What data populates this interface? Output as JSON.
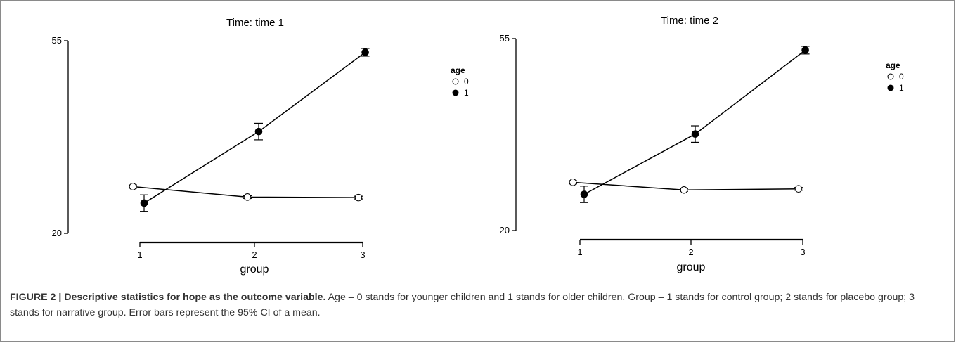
{
  "chart_data": [
    {
      "type": "line",
      "title": "Time: time 1",
      "xlabel": "group",
      "ylabel": "",
      "categories": [
        "1",
        "2",
        "3"
      ],
      "ylim": [
        20,
        55
      ],
      "y_ticks": [
        "55",
        "20"
      ],
      "legend": {
        "title": "age",
        "placement": "right"
      },
      "series": [
        {
          "name": "0",
          "marker": "open-circle",
          "values": [
            28.5,
            26.6,
            26.5
          ],
          "ci": [
            0.3,
            0.25,
            0.25
          ]
        },
        {
          "name": "1",
          "marker": "filled-circle",
          "values": [
            25.5,
            38.5,
            52.9
          ],
          "ci": [
            1.5,
            1.5,
            0.7
          ]
        }
      ]
    },
    {
      "type": "line",
      "title": "Time: time 2",
      "xlabel": "group",
      "ylabel": "",
      "categories": [
        "1",
        "2",
        "3"
      ],
      "ylim": [
        20,
        55
      ],
      "y_ticks": [
        "55",
        "20"
      ],
      "legend": {
        "title": "age",
        "placement": "right"
      },
      "series": [
        {
          "name": "0",
          "marker": "open-circle",
          "values": [
            28.8,
            27.4,
            27.6
          ],
          "ci": [
            0.3,
            0.25,
            0.25
          ]
        },
        {
          "name": "1",
          "marker": "filled-circle",
          "values": [
            26.6,
            37.6,
            52.9
          ],
          "ci": [
            1.5,
            1.5,
            0.7
          ]
        }
      ]
    }
  ],
  "caption": {
    "label": "FIGURE 2 | Descriptive statistics for hope as the outcome variable.",
    "text": " Age – 0 stands for younger children and 1 stands for older children. Group – 1 stands for control group; 2 stands for placebo group; 3 stands for narrative group. Error bars represent the 95% CI of a mean."
  }
}
